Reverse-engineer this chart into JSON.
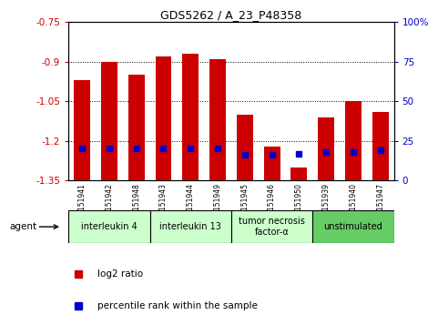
{
  "title": "GDS5262 / A_23_P48358",
  "samples": [
    "GSM1151941",
    "GSM1151942",
    "GSM1151948",
    "GSM1151943",
    "GSM1151944",
    "GSM1151949",
    "GSM1151945",
    "GSM1151946",
    "GSM1151950",
    "GSM1151939",
    "GSM1151940",
    "GSM1151947"
  ],
  "log2_values": [
    -0.97,
    -0.9,
    -0.95,
    -0.88,
    -0.87,
    -0.89,
    -1.1,
    -1.22,
    -1.3,
    -1.11,
    -1.05,
    -1.09
  ],
  "percentile_values": [
    20,
    20,
    20,
    20,
    20,
    20,
    16,
    16,
    17,
    18,
    18,
    19
  ],
  "bar_color": "#cc0000",
  "marker_color": "#0000cc",
  "ylim_left": [
    -1.35,
    -0.75
  ],
  "ylim_right": [
    0,
    100
  ],
  "yticks_left": [
    -1.35,
    -1.2,
    -1.05,
    -0.9,
    -0.75
  ],
  "yticks_right": [
    0,
    25,
    50,
    75,
    100
  ],
  "agent_groups": [
    {
      "label": "interleukin 4",
      "indices": [
        0,
        1,
        2
      ],
      "color": "#ccffcc"
    },
    {
      "label": "interleukin 13",
      "indices": [
        3,
        4,
        5
      ],
      "color": "#ccffcc"
    },
    {
      "label": "tumor necrosis\nfactor-α",
      "indices": [
        6,
        7,
        8
      ],
      "color": "#ccffcc"
    },
    {
      "label": "unstimulated",
      "indices": [
        9,
        10,
        11
      ],
      "color": "#66cc66"
    }
  ],
  "legend_items": [
    {
      "label": "log2 ratio",
      "color": "#cc0000"
    },
    {
      "label": "percentile rank within the sample",
      "color": "#0000cc"
    }
  ],
  "background_color": "#ffffff",
  "plot_bg_color": "#ffffff",
  "axis_left_color": "#cc0000",
  "axis_right_color": "#0000cc",
  "grid_color": "#000000",
  "bar_bottom": -1.35,
  "bar_width": 0.6
}
